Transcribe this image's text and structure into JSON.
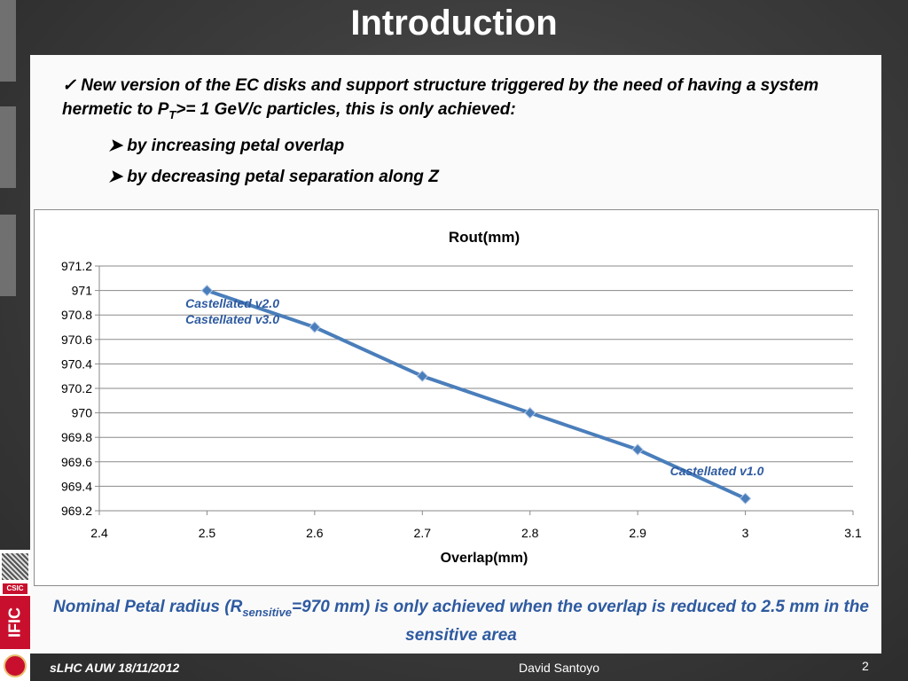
{
  "slide": {
    "title": "Introduction",
    "bullet_main_pre": "New version of the EC disks and support structure triggered by the need of having a system hermetic to P",
    "bullet_main_sub": "T",
    "bullet_main_post": ">= 1 GeV/c particles, this is only achieved:",
    "bullet_sub1": "by increasing petal overlap",
    "bullet_sub2": "by decreasing petal separation along Z",
    "note_pre": "Nominal Petal radius (R",
    "note_sub": "sensitive",
    "note_post": "=970 mm) is only achieved when the overlap is reduced to 2.5 mm in the sensitive area",
    "footer_left": "sLHC AUW 18/11/2012",
    "footer_center": "David Santoyo",
    "page_number": "2",
    "logo_text": "IFIC",
    "csic_text": "CSIC"
  },
  "chart_data": {
    "type": "line",
    "title": "Rout\u001c(mm)\u001c",
    "xlabel": "Overlap\u001c(mm)\u001c",
    "ylabel": "",
    "x_ticks": [
      "2.4\u001c",
      "2.5\u001c",
      "2.6\u001c",
      "2.7\u001c",
      "2.8\u001c",
      "2.9\u001c",
      "3\u001c",
      "3.1\u001c"
    ],
    "y_ticks": [
      "969.2\u001c",
      "969.4\u001c",
      "969.6\u001c",
      "969.8\u001c",
      "970\u001c",
      "970.2\u001c",
      "970.4\u001c",
      "970.6\u001c",
      "970.8\u001c",
      "971\u001c",
      "971.2\u001c"
    ],
    "xlim": [
      2.4,
      3.1
    ],
    "ylim": [
      969.2,
      971.2
    ],
    "grid": true,
    "series": [
      {
        "color": "#4a7ebb",
        "x": [
          2.5,
          2.6,
          2.7,
          2.8,
          2.9,
          3.0
        ],
        "values": [
          971.0,
          970.7,
          970.3,
          970.0,
          969.7,
          969.3
        ]
      }
    ],
    "annotations": [
      {
        "text": "Castellated v2.0",
        "x": 2.48,
        "y": 970.86
      },
      {
        "text": "Castellated v3.0",
        "x": 2.48,
        "y": 970.73
      },
      {
        "text": "Castellated v1.0",
        "x": 2.93,
        "y": 969.49
      }
    ]
  }
}
